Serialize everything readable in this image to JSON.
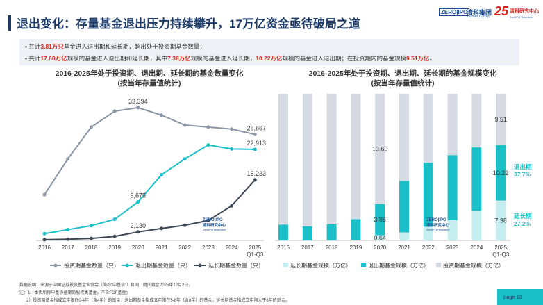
{
  "header": {
    "title": "退出变化：存量基金退出压力持续攀升，17万亿资金亟待破局之道",
    "logo_zero": "ZERO|IPO",
    "logo_qingke": "清科集团",
    "logo_group": "ZeroIPO Group",
    "logo_center": "清科研究中心",
    "logo_center_en": "ZeroIPO Research",
    "logo_25": "25"
  },
  "bullets": [
    {
      "p1": "共计",
      "h1": "3.81万只",
      "p2": "基金进入退出期和延长期，超出处于投资期基金数量；",
      "h2": "",
      "p3": "",
      "h3": "",
      "p4": "",
      "h4": "",
      "p5": ""
    },
    {
      "p1": "共计",
      "h1": "17.60万亿",
      "p2": "规模的基金进入退出期和延长期，其中",
      "h2": "7.38万亿",
      "p3": "规模的基金进入延长期，",
      "h3": "10.22万亿",
      "p4": "规模的基金进入退出期；在投资期内的基金规模",
      "h4": "9.51万亿",
      "p5": "。"
    }
  ],
  "watermark": {
    "zero": "ZERO|IPO",
    "center": "清科研究中心",
    "en": "ZeroIPO Research"
  },
  "colors": {
    "navy": "#1d3a66",
    "gray_line": "#8a95a5",
    "teal": "#1bbfc7",
    "dark_line": "#3c4756",
    "light_teal": "#c4eef0",
    "light_gray": "#d6dae2",
    "red": "#d9241b"
  },
  "chart_data": [
    {
      "type": "line",
      "title": "2016-2025年处于投资期、退出期、延长期的基金数量变化",
      "subtitle": "(按当年存量值统计)",
      "categories": [
        "2016",
        "2017",
        "2018",
        "2019",
        "2020",
        "2021",
        "2022",
        "2023",
        "2024",
        "2025 Q1-Q3"
      ],
      "ylim": [
        0,
        36000
      ],
      "grid": false,
      "legend": "bottom",
      "series": [
        {
          "name": "投资期基金数量（只）",
          "values": [
            11500,
            20500,
            28500,
            32500,
            33394,
            31500,
            29000,
            28500,
            28000,
            26667
          ],
          "labels": [
            "",
            "",
            "",
            "",
            "33,394",
            "",
            "",
            "",
            "",
            "26,667"
          ]
        },
        {
          "name": "退出期基金数量（只）",
          "values": [
            1700,
            2700,
            3700,
            5300,
            9675,
            16500,
            20500,
            24000,
            23000,
            22913
          ],
          "labels": [
            "",
            "",
            "",
            "",
            "9,675",
            "",
            "",
            "",
            "",
            "22,913"
          ]
        },
        {
          "name": "延长期基金数量（只）",
          "values": [
            200,
            300,
            500,
            1000,
            2130,
            3000,
            3800,
            5000,
            8700,
            15233
          ],
          "labels": [
            "",
            "",
            "",
            "",
            "2,130",
            "",
            "",
            "",
            "",
            "15,233"
          ]
        }
      ]
    },
    {
      "type": "bar",
      "title": "2016-2025年处于投资期、退出期、延长期的基金规模变化",
      "subtitle": "(按当年存量值统计)",
      "categories": [
        "2016",
        "2017",
        "2018",
        "2019",
        "2020",
        "2021",
        "2022",
        "2023",
        "2024",
        "2025 Q1-Q3"
      ],
      "stacked": "percent",
      "legend": "bottom",
      "series": [
        {
          "name": "延长期基金规模（万亿）",
          "values": [
            0.01,
            0.01,
            0.02,
            0.05,
            0.64,
            0.9,
            1.7,
            2.6,
            4.2,
            7.38
          ],
          "labels": [
            "",
            "",
            "",
            "",
            "0.64",
            "",
            "",
            "",
            "",
            "7.38"
          ]
        },
        {
          "name": "退出期基金规模（万亿）",
          "values": [
            1.5,
            1.4,
            1.6,
            2.0,
            3.86,
            5.8,
            8.0,
            8.4,
            9.0,
            10.22
          ],
          "labels": [
            "",
            "",
            "",
            "",
            "3.86",
            "",
            "",
            "",
            "",
            "10.22"
          ]
        },
        {
          "name": "投资期基金规模（万亿）",
          "values": [
            12.5,
            13.3,
            13.1,
            12.1,
            13.63,
            9.8,
            8.6,
            7.9,
            7.6,
            9.51
          ],
          "labels": [
            "",
            "",
            "",
            "",
            "13.63",
            "",
            "",
            "",
            "",
            "9.51"
          ]
        }
      ],
      "annotations": [
        {
          "label": "退出期",
          "value": "37.7%"
        },
        {
          "label": "延长期",
          "value": "27.2%"
        }
      ]
    }
  ],
  "footer": {
    "source": "数据说明：来源于中国证券投资基金业协会（简称“中基协”）官网，时间截至2025年12月2日。",
    "note1": "注：1）本页所称中基协备案的股权类基金，不含FOF基金；",
    "note2": "2）投资期基金指成立年限在0-4年（含4年）的基金；退出期基金指成立年限在5-8年（含8年）的基金；延长期基金指成立年限大于8年的基金。",
    "page": "page  10"
  }
}
